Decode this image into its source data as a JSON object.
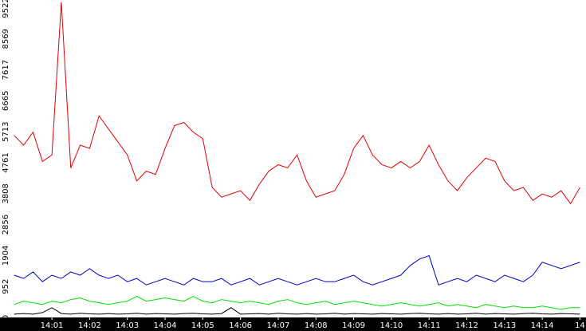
{
  "chart_data": {
    "type": "line",
    "x": [
      0,
      0.25,
      0.5,
      0.75,
      1,
      1.25,
      1.5,
      1.75,
      2,
      2.25,
      2.5,
      2.75,
      3,
      3.25,
      3.5,
      3.75,
      4,
      4.25,
      4.5,
      4.75,
      5,
      5.25,
      5.5,
      5.75,
      6,
      6.25,
      6.5,
      6.75,
      7,
      7.25,
      7.5,
      7.75,
      8,
      8.25,
      8.5,
      8.75,
      9,
      9.25,
      9.5,
      9.75,
      10,
      10.25,
      10.5,
      10.75,
      11,
      11.25,
      11.5,
      11.75,
      12,
      12.25,
      12.5,
      12.75,
      13,
      13.25,
      13.5,
      13.75,
      14,
      14.25,
      14.5,
      14.75,
      15
    ],
    "series": [
      {
        "color": "#e00000",
        "values": [
          5600,
          5300,
          5700,
          4800,
          5000,
          9700,
          4600,
          5300,
          5200,
          6200,
          5800,
          5400,
          5000,
          4200,
          4500,
          4400,
          5200,
          5900,
          6000,
          5700,
          5500,
          4000,
          3700,
          3800,
          3900,
          3600,
          4100,
          4500,
          4700,
          4600,
          5000,
          4200,
          3700,
          3800,
          3900,
          4400,
          5200,
          5600,
          5000,
          4700,
          4600,
          4800,
          4600,
          4800,
          5300,
          4700,
          4200,
          3900,
          4300,
          4600,
          4900,
          4800,
          4200,
          3900,
          4000,
          3600,
          3800,
          3700,
          3900,
          3500,
          4000
        ]
      },
      {
        "color": "#0000c0",
        "values": [
          1300,
          1200,
          1400,
          1100,
          1300,
          1200,
          1400,
          1300,
          1500,
          1300,
          1200,
          1300,
          1100,
          1200,
          1000,
          1100,
          1200,
          1100,
          1000,
          1200,
          1100,
          1100,
          1200,
          1000,
          1100,
          1200,
          1000,
          1100,
          1200,
          1100,
          1000,
          1100,
          1200,
          1100,
          1100,
          1200,
          1300,
          1100,
          1000,
          1100,
          1200,
          1300,
          1600,
          1800,
          1900,
          1000,
          1100,
          1200,
          1100,
          1300,
          1200,
          1100,
          1300,
          1200,
          1100,
          1300,
          1700,
          1600,
          1500,
          1600,
          1700
        ]
      },
      {
        "color": "#00e000",
        "values": [
          400,
          500,
          450,
          400,
          500,
          450,
          550,
          600,
          500,
          450,
          400,
          450,
          500,
          650,
          500,
          550,
          600,
          550,
          500,
          650,
          500,
          450,
          550,
          500,
          450,
          500,
          450,
          400,
          500,
          550,
          450,
          400,
          450,
          500,
          400,
          450,
          500,
          450,
          400,
          350,
          400,
          450,
          400,
          350,
          400,
          450,
          350,
          400,
          350,
          300,
          400,
          350,
          300,
          350,
          300,
          300,
          350,
          300,
          250,
          300,
          300
        ]
      },
      {
        "color": "#000000",
        "values": [
          100,
          120,
          100,
          150,
          300,
          120,
          100,
          130,
          110,
          100,
          120,
          100,
          110,
          130,
          100,
          120,
          110,
          100,
          120,
          130,
          110,
          100,
          120,
          300,
          100,
          110,
          120,
          100,
          130,
          110,
          100,
          120,
          100,
          110,
          130,
          100,
          120,
          110,
          100,
          120,
          110,
          100,
          120,
          130,
          110,
          100,
          120,
          100,
          110,
          130,
          100,
          120,
          110,
          100,
          120,
          130,
          110,
          100,
          120,
          110,
          100
        ]
      }
    ],
    "xlim": [
      -0.08,
      15.16
    ],
    "xticks": [
      {
        "value": 1,
        "label": "14:01"
      },
      {
        "value": 2,
        "label": "14:02"
      },
      {
        "value": 3,
        "label": "14:03"
      },
      {
        "value": 4,
        "label": "14:04"
      },
      {
        "value": 5,
        "label": "14:05"
      },
      {
        "value": 6,
        "label": "14:06"
      },
      {
        "value": 7,
        "label": "14:07"
      },
      {
        "value": 8,
        "label": "14:08"
      },
      {
        "value": 9,
        "label": "14:09"
      },
      {
        "value": 10,
        "label": "14:10"
      },
      {
        "value": 11,
        "label": "14:11"
      },
      {
        "value": 12,
        "label": "14:12"
      },
      {
        "value": 13,
        "label": "14:13"
      },
      {
        "value": 14,
        "label": "14:14"
      },
      {
        "value": 15,
        "label": "14"
      }
    ],
    "ylim": [
      0,
      9767
    ],
    "yticks": [
      0,
      952,
      1904,
      2856,
      3808,
      4761,
      5713,
      6665,
      7617,
      8569,
      9522
    ]
  }
}
